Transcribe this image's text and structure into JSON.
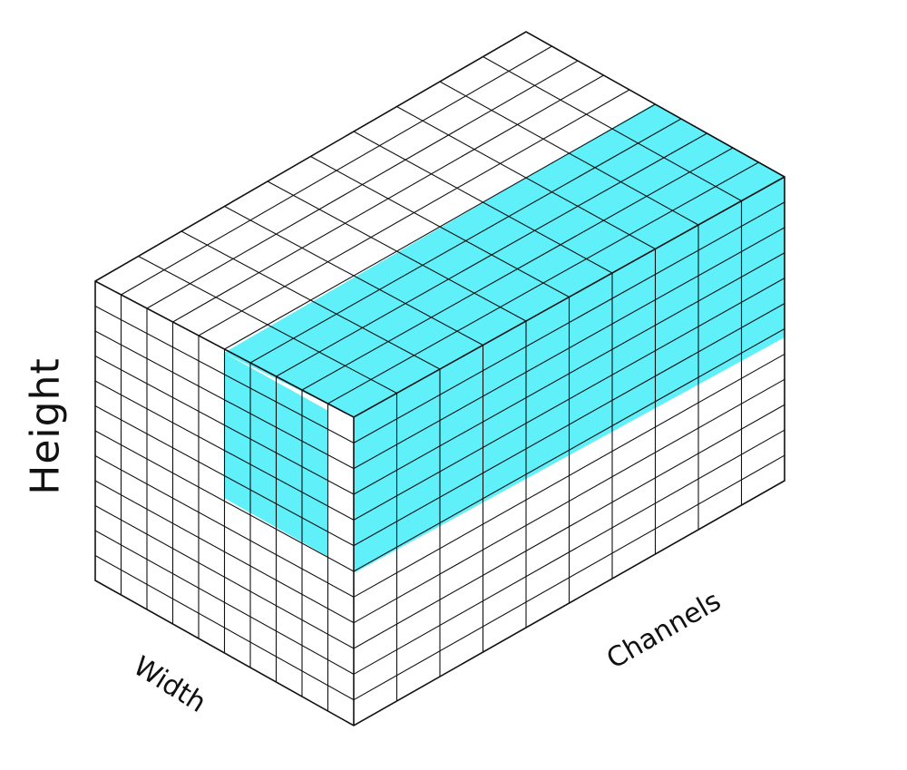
{
  "labels": {
    "height": "Height",
    "width": "Width",
    "channels": "Channels"
  },
  "colors": {
    "highlight": "#5ff0fa",
    "grid_line": "#111111",
    "face": "#ffffff"
  }
}
